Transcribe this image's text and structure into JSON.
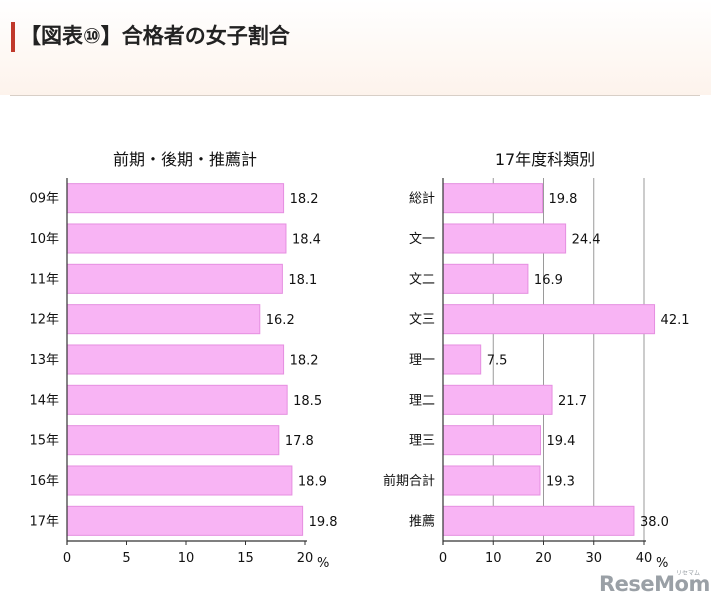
{
  "header": {
    "title": "【図表⑩】合格者の女子割合"
  },
  "colors": {
    "bar_fill": "#f8b4f4",
    "bar_stroke": "#e58fe0",
    "axis": "#333333",
    "grid": "#9a9a9a"
  },
  "chart_data": [
    {
      "type": "bar",
      "orientation": "horizontal",
      "title": "前期・後期・推薦計",
      "categories": [
        "09年",
        "10年",
        "11年",
        "12年",
        "13年",
        "14年",
        "15年",
        "16年",
        "17年"
      ],
      "values": [
        18.2,
        18.4,
        18.1,
        16.2,
        18.2,
        18.5,
        17.8,
        18.9,
        19.8
      ],
      "data_labels": [
        "18.2",
        "18.4",
        "18.1",
        "16.2",
        "18.2",
        "18.5",
        "17.8",
        "18.9",
        "19.8"
      ],
      "xlim": [
        0,
        20
      ],
      "xticks": [
        "0",
        "5",
        "10",
        "15",
        "20"
      ],
      "xunit": "%",
      "grid": false
    },
    {
      "type": "bar",
      "orientation": "horizontal",
      "title": "17年度科類別",
      "categories": [
        "総計",
        "文一",
        "文二",
        "文三",
        "理一",
        "理二",
        "理三",
        "前期合計",
        "推薦"
      ],
      "values": [
        19.8,
        24.4,
        16.9,
        42.1,
        7.5,
        21.7,
        19.4,
        19.3,
        38.0
      ],
      "data_labels": [
        "19.8",
        "24.4",
        "16.9",
        "42.1",
        "7.5",
        "21.7",
        "19.4",
        "19.3",
        "38.0"
      ],
      "xlim": [
        0,
        40
      ],
      "xticks": [
        "0",
        "10",
        "20",
        "30",
        "40"
      ],
      "xunit": "%",
      "grid": true
    }
  ],
  "logo": {
    "text": "ReseMom",
    "small": "リセマム"
  }
}
